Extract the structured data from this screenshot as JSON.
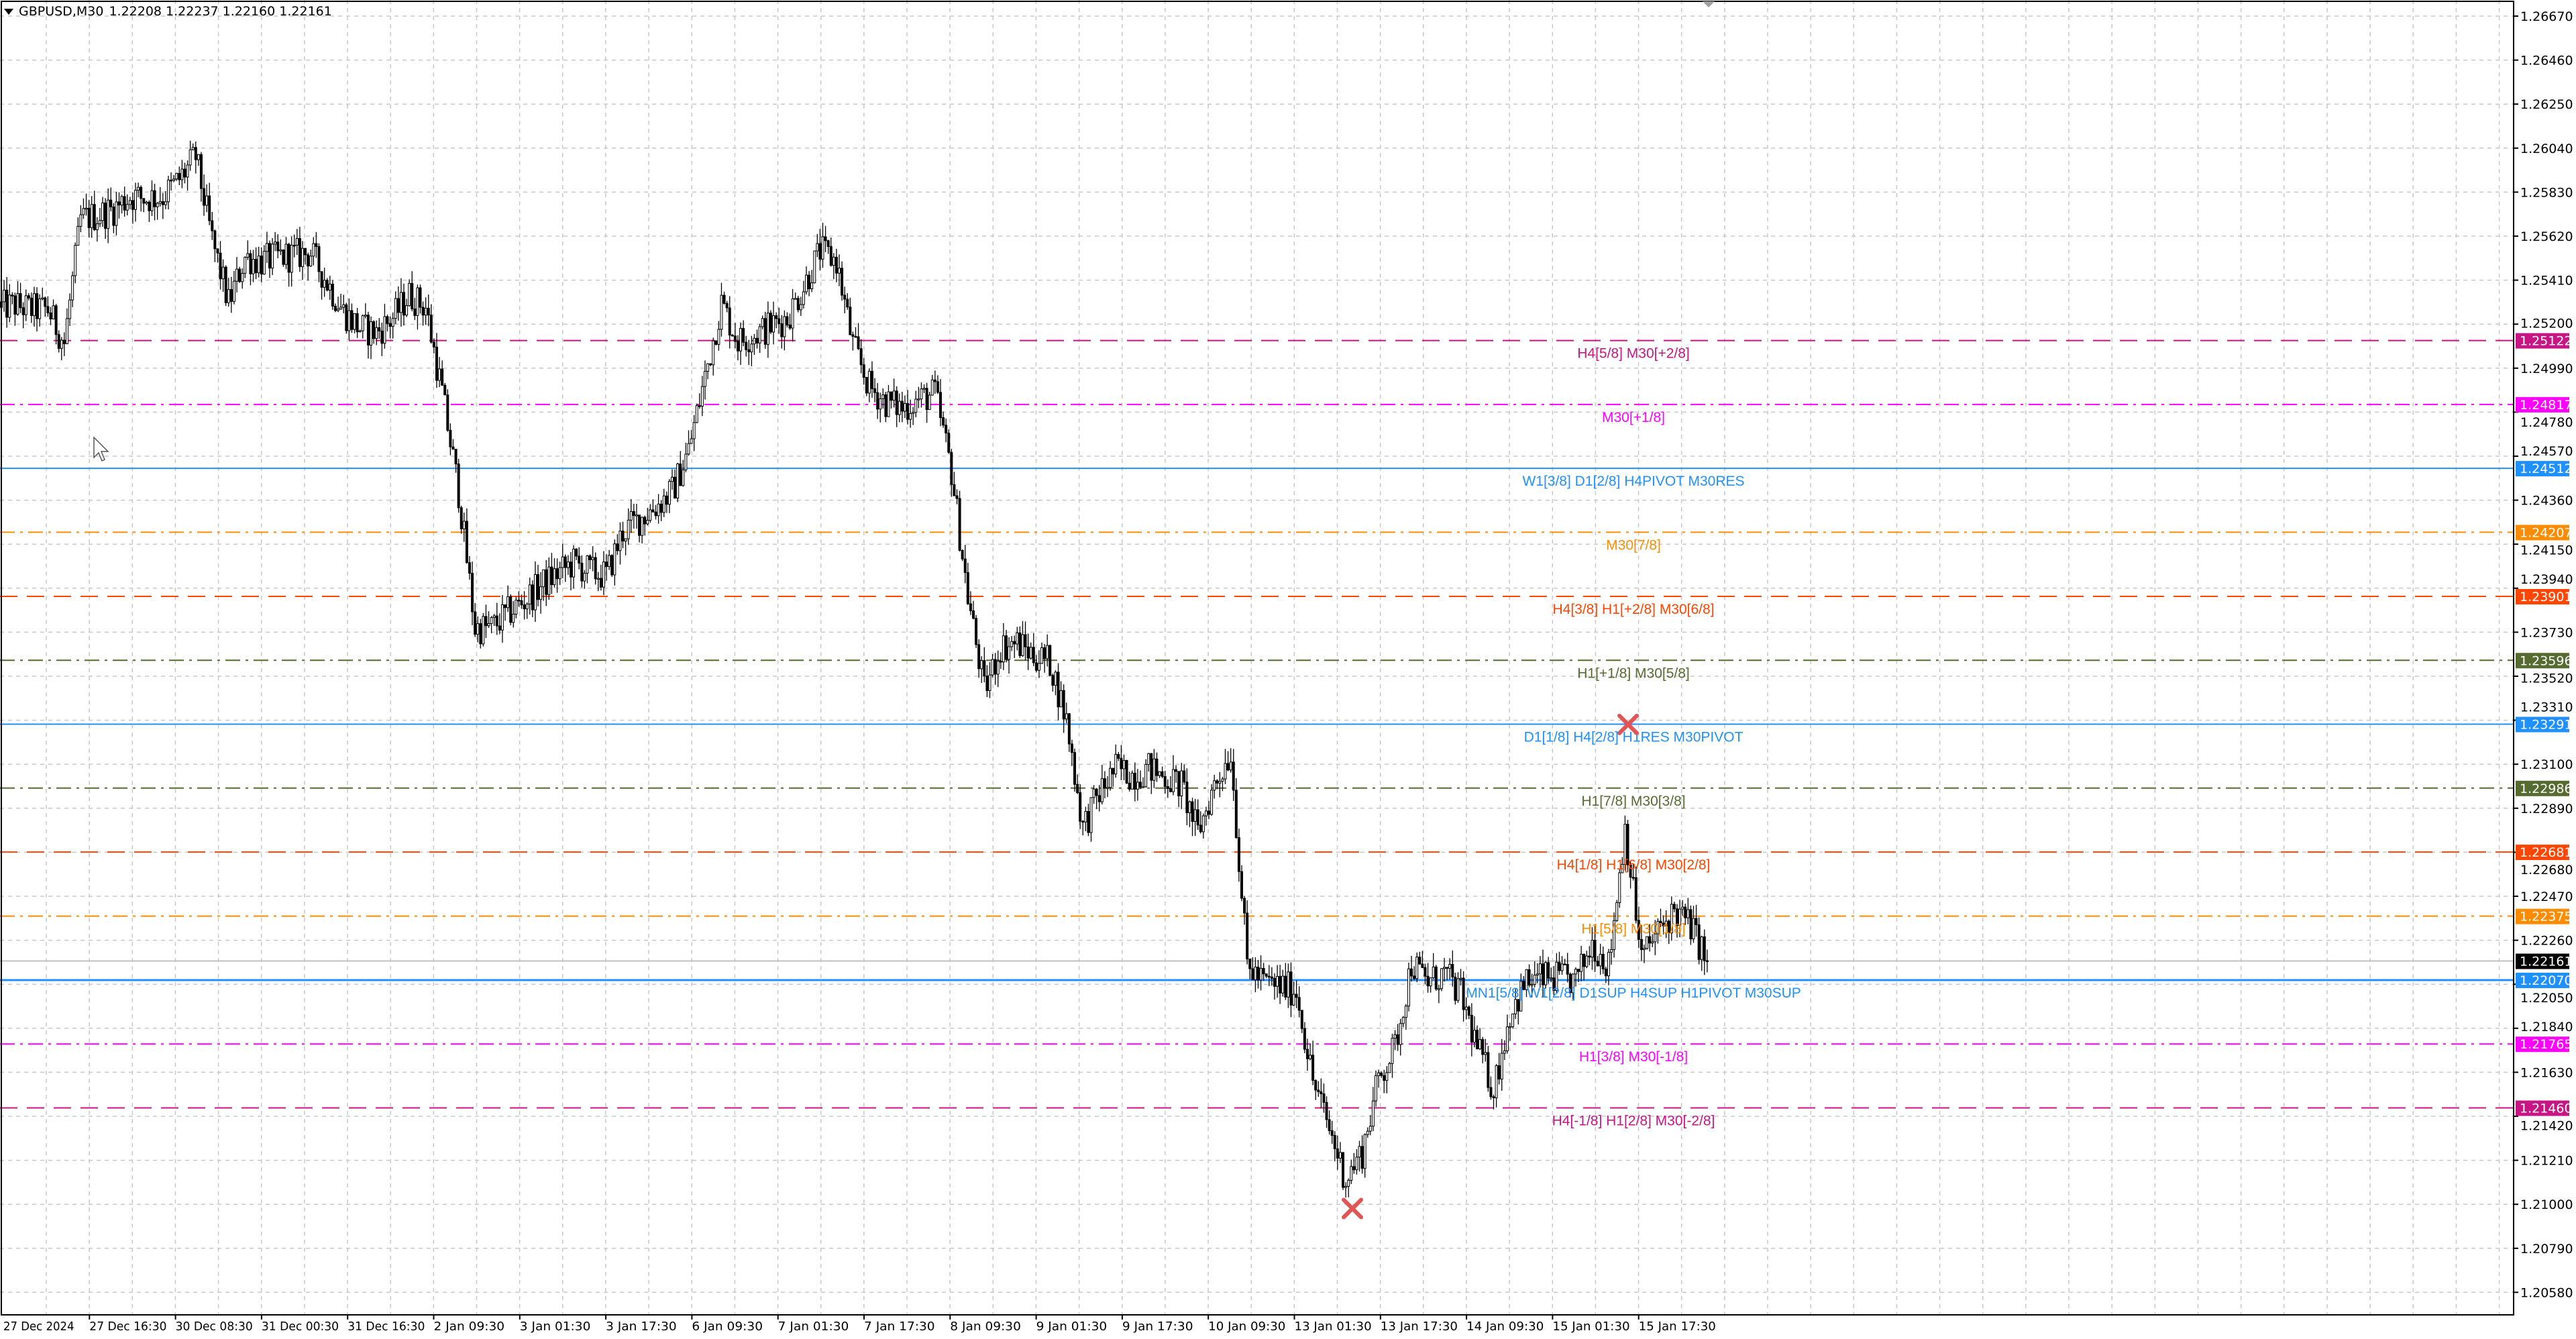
{
  "header": {
    "symbol": "GBPUSD,M30",
    "ohlc": "1.22208 1.22237 1.22160 1.22161",
    "menu_icon": "triangle-down-icon"
  },
  "chart_data": {
    "type": "candlestick",
    "symbol": "GBPUSD",
    "timeframe": "M30",
    "ylim": [
      1.205,
      1.2674
    ],
    "y_ticks": [
      "1.26670",
      "1.26460",
      "1.26250",
      "1.26040",
      "1.25830",
      "1.25620",
      "1.25410",
      "1.25200",
      "1.24990",
      "1.24780",
      "1.24570",
      "1.24360",
      "1.24150",
      "1.23940",
      "1.23730",
      "1.23520",
      "1.23310",
      "1.23100",
      "1.22890",
      "1.22680",
      "1.22470",
      "1.22260",
      "1.22050",
      "1.21840",
      "1.21630",
      "1.21420",
      "1.21210",
      "1.21000",
      "1.20790",
      "1.20580"
    ],
    "x_ticks": [
      "27 Dec 2024",
      "27 Dec 16:30",
      "30 Dec 08:30",
      "31 Dec 00:30",
      "31 Dec 16:30",
      "2 Jan 09:30",
      "3 Jan 01:30",
      "3 Jan 17:30",
      "6 Jan 09:30",
      "7 Jan 01:30",
      "7 Jan 17:30",
      "8 Jan 09:30",
      "9 Jan 01:30",
      "9 Jan 17:30",
      "10 Jan 09:30",
      "13 Jan 01:30",
      "13 Jan 17:30",
      "14 Jan 09:30",
      "15 Jan 01:30",
      "15 Jan 17:30"
    ],
    "grid": true,
    "approx_closes": [
      1.2528,
      1.2529,
      1.2527,
      1.2527,
      1.2511,
      1.257,
      1.2572,
      1.2575,
      1.2581,
      1.258,
      1.2581,
      1.2589,
      1.26,
      1.256,
      1.253,
      1.2552,
      1.255,
      1.2552,
      1.2553,
      1.2554,
      1.254,
      1.2526,
      1.2518,
      1.2516,
      1.2523,
      1.2534,
      1.2528,
      1.2487,
      1.244,
      1.2375,
      1.2375,
      1.2382,
      1.2388,
      1.2395,
      1.2401,
      1.2406,
      1.2402,
      1.24,
      1.2421,
      1.2427,
      1.2433,
      1.244,
      1.246,
      1.2495,
      1.253,
      1.2512,
      1.2515,
      1.2519,
      1.2523,
      1.2538,
      1.2555,
      1.255,
      1.251,
      1.249,
      1.2483,
      1.248,
      1.2484,
      1.2487,
      1.245,
      1.239,
      1.2345,
      1.2366,
      1.2368,
      1.2362,
      1.2359,
      1.2331,
      1.228,
      1.2296,
      1.2308,
      1.2305,
      1.2308,
      1.2304,
      1.23,
      1.2277,
      1.23,
      1.2316,
      1.2214,
      1.2206,
      1.2204,
      1.2202,
      1.2159,
      1.2136,
      1.2112,
      1.2125,
      1.216,
      1.2175,
      1.2215,
      1.2206,
      1.221,
      1.22,
      1.2175,
      1.2155,
      1.2191,
      1.2206,
      1.2208,
      1.2208,
      1.2206,
      1.2225,
      1.2214,
      1.228,
      1.2218,
      1.223,
      1.224,
      1.2233,
      1.22161
    ],
    "current_price": {
      "value": 1.22161,
      "label": "1.22161",
      "color": "#000000"
    },
    "levels": [
      {
        "price": 1.25122,
        "price_label": "1.25122",
        "text": "H4[5/8] M30[+2/8]",
        "color": "#C71585",
        "style": "dashed"
      },
      {
        "price": 1.24817,
        "price_label": "1.24817",
        "text": "M30[+1/8]",
        "color": "#FF00FF",
        "style": "dashdot"
      },
      {
        "price": 1.24512,
        "price_label": "1.24512",
        "text": "W1[3/8] D1[2/8] H4PIVOT M30RES",
        "color": "#1E90FF",
        "style": "solid"
      },
      {
        "price": 1.24207,
        "price_label": "1.24207",
        "text": "M30[7/8]",
        "color": "#FF8C00",
        "style": "dashdot"
      },
      {
        "price": 1.23901,
        "price_label": "1.23901",
        "text": "H4[3/8] H1[+2/8] M30[6/8]",
        "color": "#FF4500",
        "style": "dashed"
      },
      {
        "price": 1.23596,
        "price_label": "1.23596",
        "text": "H1[+1/8] M30[5/8]",
        "color": "#556B2F",
        "style": "dashdot"
      },
      {
        "price": 1.23291,
        "price_label": "1.23291",
        "text": "D1[1/8] H4[2/8] H1RES M30PIVOT",
        "color": "#1E90FF",
        "style": "solid"
      },
      {
        "price": 1.22986,
        "price_label": "1.22986",
        "text": "H1[7/8] M30[3/8]",
        "color": "#556B2F",
        "style": "dashdot"
      },
      {
        "price": 1.22681,
        "price_label": "1.22681",
        "text": "H4[1/8] H1[6/8] M30[2/8]",
        "color": "#FF4500",
        "style": "dashed"
      },
      {
        "price": 1.22375,
        "price_label": "1.22375",
        "text": "H1[5/8] M30[1/8]",
        "color": "#FF8C00",
        "style": "dashdot"
      },
      {
        "price": 1.2207,
        "price_label": "1.22070",
        "text": "MN1[5/8] W1[2/8] D1SUP H4SUP H1PIVOT M30SUP",
        "color": "#1E90FF",
        "style": "solid-thick"
      },
      {
        "price": 1.21765,
        "price_label": "1.21765",
        "text": "H1[3/8] M30[-1/8]",
        "color": "#FF00FF",
        "style": "dashdot"
      },
      {
        "price": 1.2146,
        "price_label": "1.21460",
        "text": "H4[-1/8] H1[2/8] M30[-2/8]",
        "color": "#C71585",
        "style": "dashed"
      }
    ],
    "markers": [
      {
        "icon": "red-x-icon",
        "color": "#E05555",
        "near_x_tick": "13 Jan 01:30",
        "price": 1.2098
      },
      {
        "icon": "red-x-icon",
        "color": "#E05555",
        "near_x_tick": "15 Jan 01:30",
        "price": 1.2329
      }
    ],
    "bull_color": "#FFFFFF",
    "bear_color": "#000000"
  }
}
